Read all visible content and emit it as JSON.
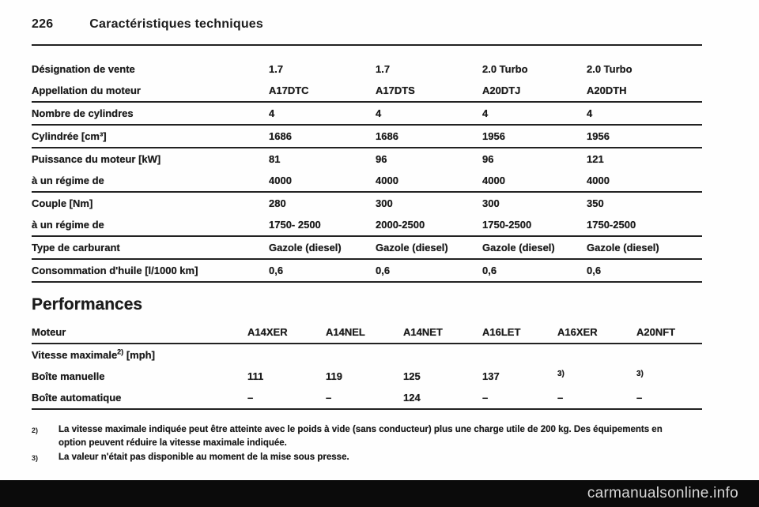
{
  "header": {
    "page_number": "226",
    "chapter_title": "Caractéristiques techniques"
  },
  "spec_table": {
    "rows": [
      {
        "label": "Désignation de vente",
        "values": [
          "1.7",
          "1.7",
          "2.0 Turbo",
          "2.0 Turbo"
        ]
      },
      {
        "label": "Appellation du moteur",
        "values": [
          "A17DTC",
          "A17DTS",
          "A20DTJ",
          "A20DTH"
        ]
      },
      {
        "label": "Nombre de cylindres",
        "values": [
          "4",
          "4",
          "4",
          "4"
        ]
      },
      {
        "label": "Cylindrée [cm³]",
        "values": [
          "1686",
          "1686",
          "1956",
          "1956"
        ]
      },
      {
        "label": "Puissance du moteur [kW]",
        "values": [
          "81",
          "96",
          "96",
          "121"
        ]
      },
      {
        "label": "à un régime de",
        "values": [
          "4000",
          "4000",
          "4000",
          "4000"
        ]
      },
      {
        "label": "Couple [Nm]",
        "values": [
          "280",
          "300",
          "300",
          "350"
        ]
      },
      {
        "label": "à un régime de",
        "values": [
          "1750- 2500",
          "2000-2500",
          "1750-2500",
          "1750-2500"
        ]
      },
      {
        "label": "Type de carburant",
        "values": [
          "Gazole (diesel)",
          "Gazole (diesel)",
          "Gazole (diesel)",
          "Gazole (diesel)"
        ]
      },
      {
        "label": "Consommation d'huile [l/1000 km]",
        "values": [
          "0,6",
          "0,6",
          "0,6",
          "0,6"
        ]
      }
    ]
  },
  "performance": {
    "title": "Performances",
    "motor_label": "Moteur",
    "engines": [
      "A14XER",
      "A14NEL",
      "A14NET",
      "A16LET",
      "A16XER",
      "A20NFT"
    ],
    "vmax_label": "Vitesse maximale",
    "vmax_sup": "2)",
    "vmax_unit": "[mph]",
    "manual_row": {
      "label": "Boîte manuelle",
      "values": [
        "111",
        "119",
        "125",
        "137",
        "3)",
        "3)"
      ]
    },
    "auto_row": {
      "label": "Boîte automatique",
      "values": [
        "–",
        "–",
        "124",
        "–",
        "–",
        "–"
      ]
    }
  },
  "footnotes": [
    {
      "marker": "2)",
      "text": "La vitesse maximale indiquée peut être atteinte avec le poids à vide (sans conducteur) plus une charge utile de 200 kg. Des équipements en option peuvent réduire la vitesse maximale indiquée."
    },
    {
      "marker": "3)",
      "text": "La valeur n'était pas disponible au moment de la mise sous presse."
    }
  ],
  "watermark": {
    "text": "carmanualsonline.info"
  }
}
